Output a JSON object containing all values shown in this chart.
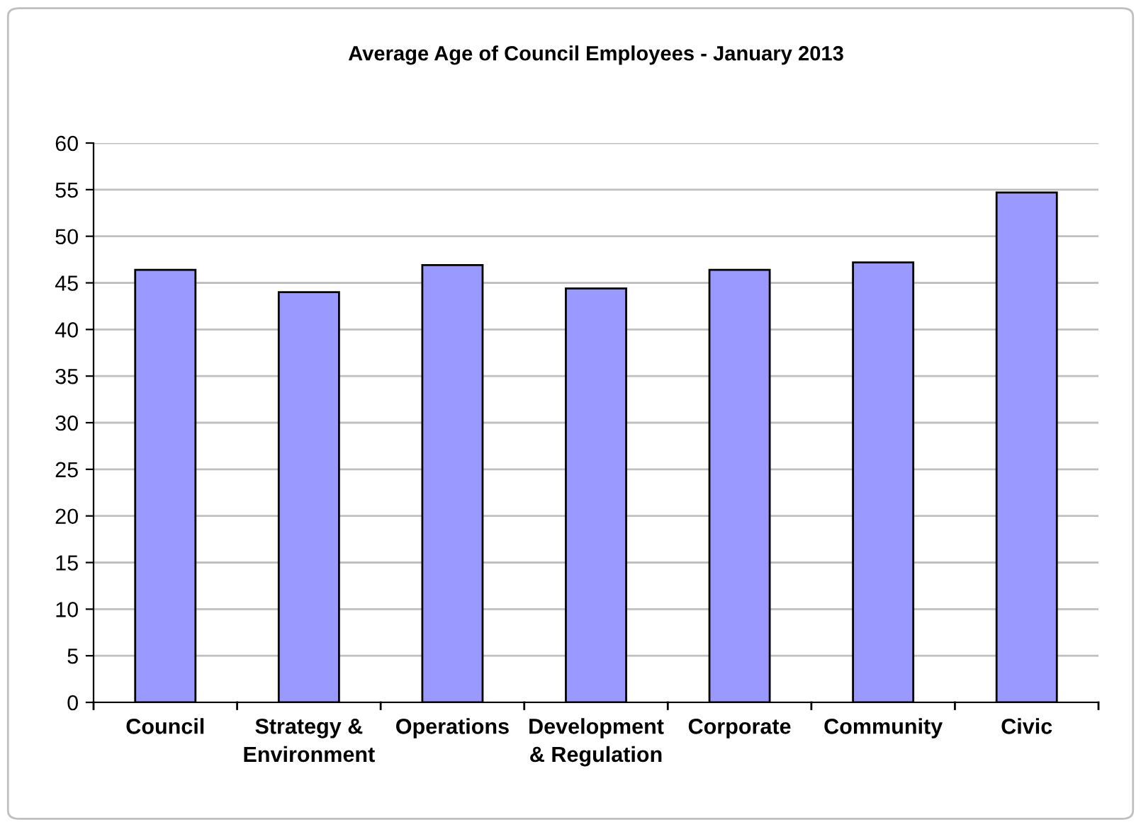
{
  "chart_data": {
    "type": "bar",
    "title": "Average Age of Council Employees - January 2013",
    "categories": [
      "Council",
      "Strategy &\nEnvironment",
      "Operations",
      "Development\n& Regulation",
      "Corporate",
      "Community",
      "Civic"
    ],
    "values": [
      46.4,
      44.0,
      46.9,
      44.4,
      46.4,
      47.2,
      54.7
    ],
    "color": "#9999ff",
    "ylim": [
      0,
      60
    ],
    "yticks": [
      0,
      5,
      10,
      15,
      20,
      25,
      30,
      35,
      40,
      45,
      50,
      55,
      60
    ],
    "grid": "y",
    "legend": false
  }
}
